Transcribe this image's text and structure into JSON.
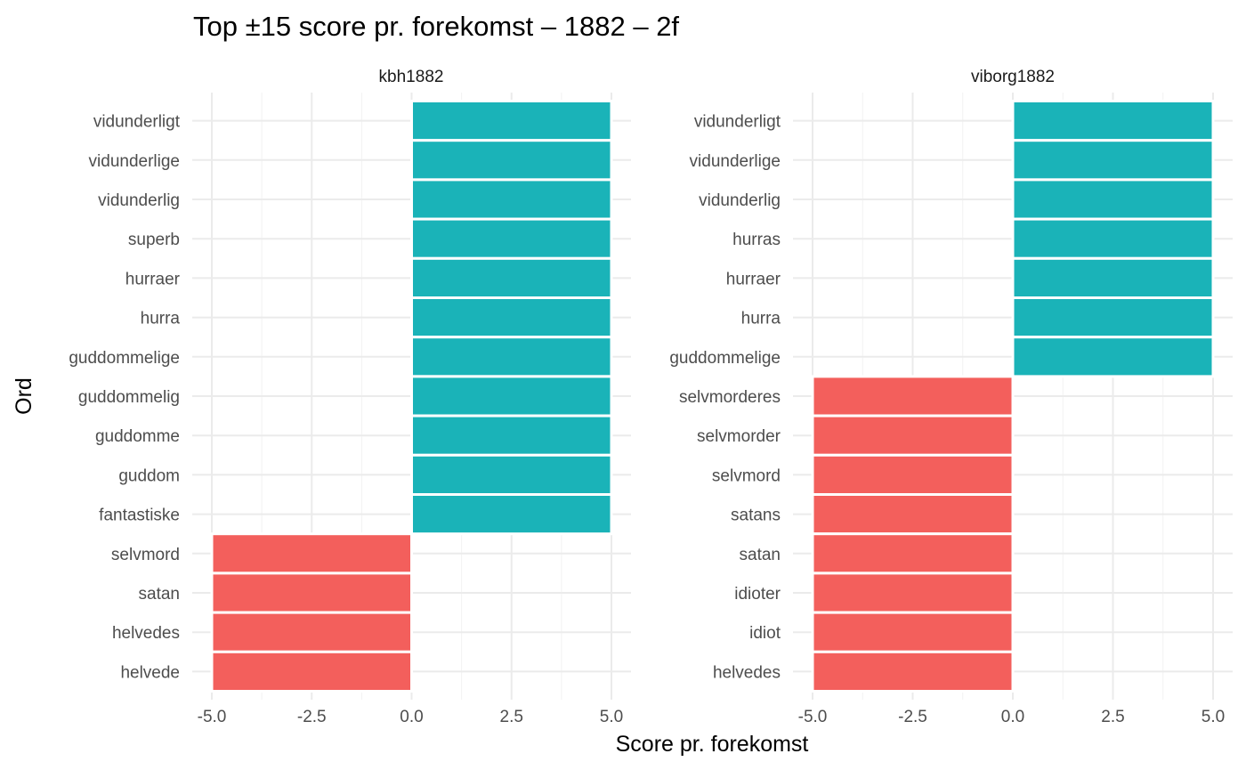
{
  "chart_data": {
    "type": "bar",
    "orientation": "horizontal",
    "title": "Top ±15 score pr. forekomst – 1882 – 2f",
    "xlabel": "Score pr. forekomst",
    "ylabel": "Ord",
    "xlim": [
      -5.0,
      5.0
    ],
    "xticks": [
      -5.0,
      -2.5,
      0.0,
      2.5,
      5.0
    ],
    "xtick_labels": [
      "-5.0",
      "-2.5",
      "0.0",
      "2.5",
      "5.0"
    ],
    "colors": {
      "positive": "#1AB3B8",
      "negative": "#F35F5C"
    },
    "grid": true,
    "legend": "none",
    "panels": [
      {
        "name": "kbh1882",
        "categories": [
          "vidunderligt",
          "vidunderlige",
          "vidunderlig",
          "superb",
          "hurraer",
          "hurra",
          "guddommelige",
          "guddommelig",
          "guddomme",
          "guddom",
          "fantastiske",
          "selvmord",
          "satan",
          "helvedes",
          "helvede"
        ],
        "values": [
          5,
          5,
          5,
          5,
          5,
          5,
          5,
          5,
          5,
          5,
          5,
          -5,
          -5,
          -5,
          -5
        ]
      },
      {
        "name": "viborg1882",
        "categories": [
          "vidunderligt",
          "vidunderlige",
          "vidunderlig",
          "hurras",
          "hurraer",
          "hurra",
          "guddommelige",
          "selvmorderes",
          "selvmorder",
          "selvmord",
          "satans",
          "satan",
          "idioter",
          "idiot",
          "helvedes"
        ],
        "values": [
          5,
          5,
          5,
          5,
          5,
          5,
          5,
          -5,
          -5,
          -5,
          -5,
          -5,
          -5,
          -5,
          -5
        ]
      }
    ]
  }
}
